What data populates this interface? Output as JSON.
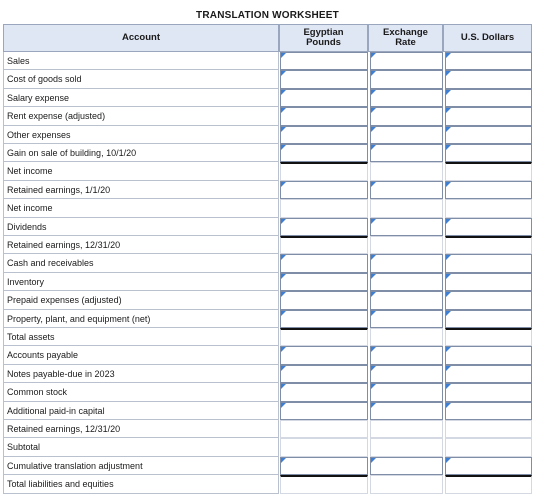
{
  "title": "TRANSLATION WORKSHEET",
  "columns": {
    "account": "Account",
    "egyptian": "Egyptian\nPounds",
    "rate": "Exchange\nRate",
    "usd": "U.S. Dollars"
  },
  "rows": [
    {
      "label": "Sales",
      "input": true
    },
    {
      "label": "Cost of goods sold",
      "input": true
    },
    {
      "label": "Salary expense",
      "input": true
    },
    {
      "label": "Rent expense (adjusted)",
      "input": true
    },
    {
      "label": "Other expenses",
      "input": true
    },
    {
      "label": "Gain on sale of building, 10/1/20",
      "input": true
    },
    {
      "label": "Net income",
      "input": false,
      "total": true
    },
    {
      "label": "Retained earnings, 1/1/20",
      "input": true
    },
    {
      "label": "Net income",
      "input": false
    },
    {
      "label": "Dividends",
      "input": true
    },
    {
      "label": "Retained earnings, 12/31/20",
      "input": false,
      "total": true
    },
    {
      "label": "Cash and receivables",
      "input": true
    },
    {
      "label": "Inventory",
      "input": true
    },
    {
      "label": "Prepaid expenses (adjusted)",
      "input": true
    },
    {
      "label": "Property, plant, and equipment (net)",
      "input": true
    },
    {
      "label": "Total assets",
      "input": false,
      "total": true
    },
    {
      "label": "Accounts payable",
      "input": true
    },
    {
      "label": "Notes payable-due in 2023",
      "input": true
    },
    {
      "label": "Common stock",
      "input": true
    },
    {
      "label": "Additional paid-in capital",
      "input": true
    },
    {
      "label": "Retained earnings, 12/31/20",
      "input": false
    },
    {
      "label": "Subtotal",
      "input": false
    },
    {
      "label": "Cumulative translation adjustment",
      "input": true
    },
    {
      "label": "Total liabilities and equities",
      "input": false,
      "total": true
    }
  ]
}
